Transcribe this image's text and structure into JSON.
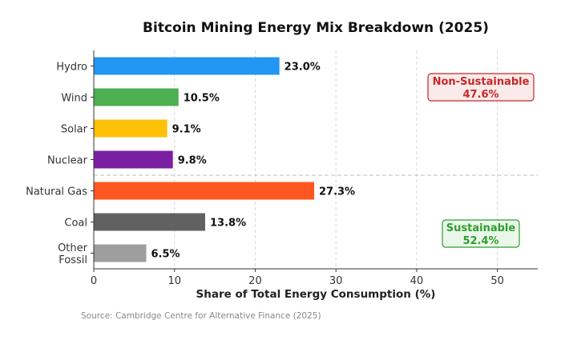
{
  "chart_data": {
    "type": "bar",
    "orientation": "horizontal",
    "title": "Bitcoin Mining Energy Mix Breakdown (2025)",
    "xlabel": "Share of Total Energy Consumption (%)",
    "ylabel": "",
    "xlim": [
      0,
      55
    ],
    "xticks": [
      0,
      10,
      20,
      30,
      40,
      50
    ],
    "grid": "vertical dashed",
    "categories": [
      {
        "label": [
          "Hydro"
        ],
        "value": 23.0,
        "display": "23.0%",
        "color": "#2196F3"
      },
      {
        "label": [
          "Wind"
        ],
        "value": 10.5,
        "display": "10.5%",
        "color": "#4CAF50"
      },
      {
        "label": [
          "Solar"
        ],
        "value": 9.1,
        "display": "9.1%",
        "color": "#FFC107"
      },
      {
        "label": [
          "Nuclear"
        ],
        "value": 9.8,
        "display": "9.8%",
        "color": "#7B1FA2"
      },
      {
        "label": [
          "Natural Gas"
        ],
        "value": 27.3,
        "display": "27.3%",
        "color": "#FF5722"
      },
      {
        "label": [
          "Coal"
        ],
        "value": 13.8,
        "display": "13.8%",
        "color": "#616161"
      },
      {
        "label": [
          "Other",
          "Fossil"
        ],
        "value": 6.5,
        "display": "6.5%",
        "color": "#9E9E9E"
      }
    ],
    "divider_after_index": 3,
    "annotations": [
      {
        "line1": "Non-Sustainable",
        "line2": "47.6%",
        "text_color": "#C62828",
        "fill": "#FBEAEA",
        "border": "#C62828",
        "placement": "top-right"
      },
      {
        "line1": "Sustainable",
        "line2": "52.4%",
        "text_color": "#2E9E2E",
        "fill": "#EAF7EA",
        "border": "#2E9E2E",
        "placement": "bottom-right"
      }
    ],
    "source": "Source: Cambridge Centre for Alternative Finance (2025)"
  }
}
